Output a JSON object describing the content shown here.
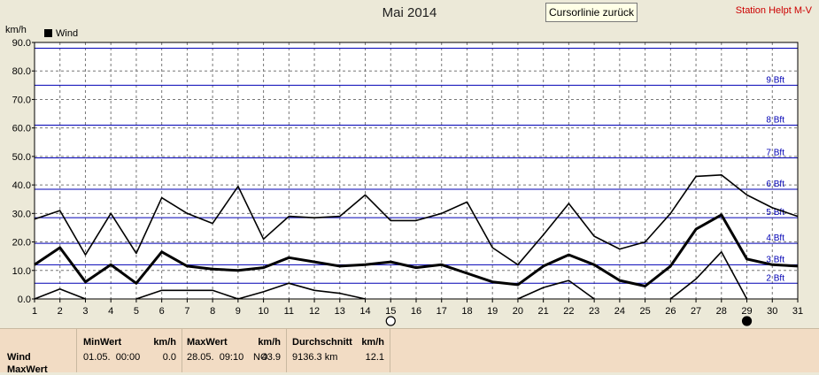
{
  "header": {
    "title": "Mai 2014",
    "cursor_button": "Cursorlinie zurück",
    "station": "Station Helpt M-V"
  },
  "colors": {
    "bft_line": "#0000b4",
    "series": "#000000",
    "grid": "#777777",
    "bft_label": "#0000b4"
  },
  "chart_data": {
    "type": "line",
    "ylabel": "km/h",
    "ylim": [
      0,
      90
    ],
    "y_ticks": [
      "0.0",
      "10.0",
      "20.0",
      "30.0",
      "40.0",
      "50.0",
      "60.0",
      "70.0",
      "80.0",
      "90.0"
    ],
    "x": [
      1,
      2,
      3,
      4,
      5,
      6,
      7,
      8,
      9,
      10,
      11,
      12,
      13,
      14,
      15,
      16,
      17,
      18,
      19,
      20,
      21,
      22,
      23,
      24,
      25,
      26,
      27,
      28,
      29,
      30,
      31
    ],
    "legend": [
      "Wind"
    ],
    "series": [
      {
        "name": "Wind",
        "role": "max",
        "values": [
          28,
          31,
          15.5,
          30,
          16,
          35.5,
          30,
          26.5,
          39.5,
          21,
          29,
          28.5,
          29,
          36.5,
          27.5,
          27.5,
          30,
          34,
          18,
          12,
          22.5,
          33.5,
          22,
          17.5,
          20,
          30,
          43,
          43.5,
          36.5,
          32,
          29
        ]
      },
      {
        "name": "Wind",
        "role": "mean",
        "values": [
          12,
          18,
          6,
          12,
          5.5,
          16.5,
          11.5,
          10.5,
          10,
          11,
          14.5,
          13,
          11.5,
          12,
          13,
          11,
          12,
          9,
          6,
          5,
          11.5,
          15.5,
          12,
          6.5,
          4.5,
          11.5,
          24.5,
          29.5,
          14,
          12,
          11.5
        ]
      },
      {
        "name": "Wind",
        "role": "min",
        "values": [
          0,
          3.5,
          0,
          null,
          0,
          3,
          3,
          3,
          0,
          2.5,
          5.5,
          3,
          2,
          0,
          null,
          null,
          null,
          null,
          null,
          0,
          4,
          6.5,
          0,
          null,
          null,
          0,
          7,
          16.5,
          0,
          null,
          null
        ]
      }
    ],
    "beaufort_lines": [
      {
        "value": 5.5,
        "label": "2 Bft"
      },
      {
        "value": 12,
        "label": "3 Bft"
      },
      {
        "value": 19.5,
        "label": "4 Bft"
      },
      {
        "value": 28.5,
        "label": "5 Bft"
      },
      {
        "value": 38.5,
        "label": "6 Bft"
      },
      {
        "value": 49.5,
        "label": "7 Bft"
      },
      {
        "value": 61,
        "label": "8 Bft"
      },
      {
        "value": 75,
        "label": "9 Bft"
      },
      {
        "value": 88,
        "label": ""
      }
    ],
    "grid": true,
    "cursor_markers": [
      {
        "x": 15,
        "filled": false
      },
      {
        "x": 29,
        "filled": true
      }
    ]
  },
  "stats": {
    "row_labels": [
      "Wind",
      "MaxWert"
    ],
    "min": {
      "header": "MinWert",
      "unit": "km/h",
      "date": "01.05.  00:00",
      "value": "0.0"
    },
    "max": {
      "header": "MaxWert",
      "unit": "km/h",
      "date": "28.05.  09:10",
      "dir": "NO",
      "value": "43.9"
    },
    "avg": {
      "header": "Durchschnitt",
      "unit": "km/h",
      "distance": "9136.3 km",
      "value": "12.1"
    }
  }
}
